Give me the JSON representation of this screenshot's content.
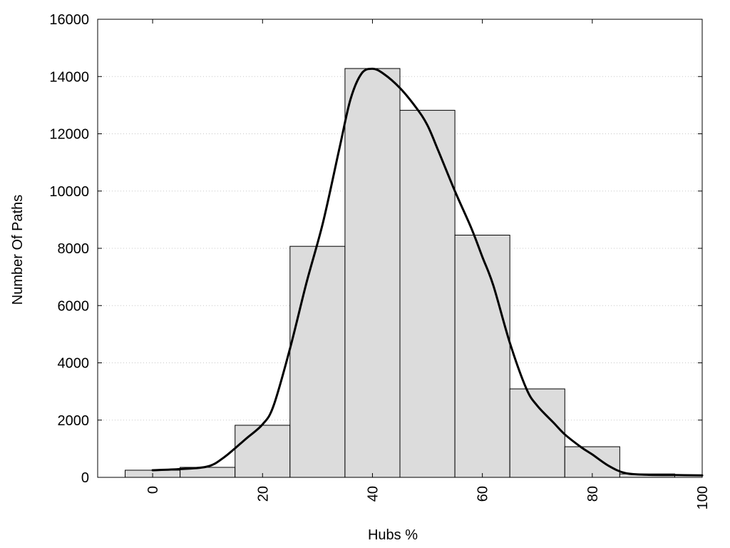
{
  "chart_data": {
    "type": "bar",
    "title": "",
    "xlabel": "Hubs %",
    "ylabel": "Number Of Paths",
    "xlim": [
      -10,
      100
    ],
    "ylim": [
      0,
      16000
    ],
    "x_ticks": [
      0,
      20,
      40,
      60,
      80,
      100
    ],
    "y_ticks": [
      0,
      2000,
      4000,
      6000,
      8000,
      10000,
      12000,
      14000,
      16000
    ],
    "grid": "horizontal dotted",
    "legend": "none",
    "bar_width": 10,
    "bars": [
      {
        "x": 0,
        "value": 250
      },
      {
        "x": 10,
        "value": 350
      },
      {
        "x": 20,
        "value": 1820
      },
      {
        "x": 30,
        "value": 8070
      },
      {
        "x": 40,
        "value": 14280
      },
      {
        "x": 50,
        "value": 12820
      },
      {
        "x": 60,
        "value": 8460
      },
      {
        "x": 70,
        "value": 3090
      },
      {
        "x": 80,
        "value": 1070
      },
      {
        "x": 90,
        "value": 120
      }
    ],
    "curve": {
      "x": [
        0,
        5,
        10,
        13,
        17,
        20,
        22,
        25,
        28,
        31,
        34,
        36,
        38,
        40,
        42,
        45,
        48,
        50,
        52,
        55,
        58,
        60,
        62,
        65,
        68,
        70,
        73,
        75,
        78,
        80,
        83,
        86,
        90,
        95,
        100
      ],
      "y": [
        250,
        290,
        380,
        700,
        1350,
        1850,
        2500,
        4500,
        6800,
        8900,
        11500,
        13200,
        14100,
        14270,
        14100,
        13600,
        12900,
        12300,
        11400,
        10000,
        8700,
        7700,
        6700,
        4700,
        3100,
        2500,
        1900,
        1500,
        1050,
        800,
        400,
        150,
        90,
        80,
        70
      ]
    },
    "colors": {
      "bar_fill": "#dcdcdc",
      "bar_stroke": "#000000",
      "curve": "#000000",
      "grid": "#c8c8c8"
    }
  }
}
